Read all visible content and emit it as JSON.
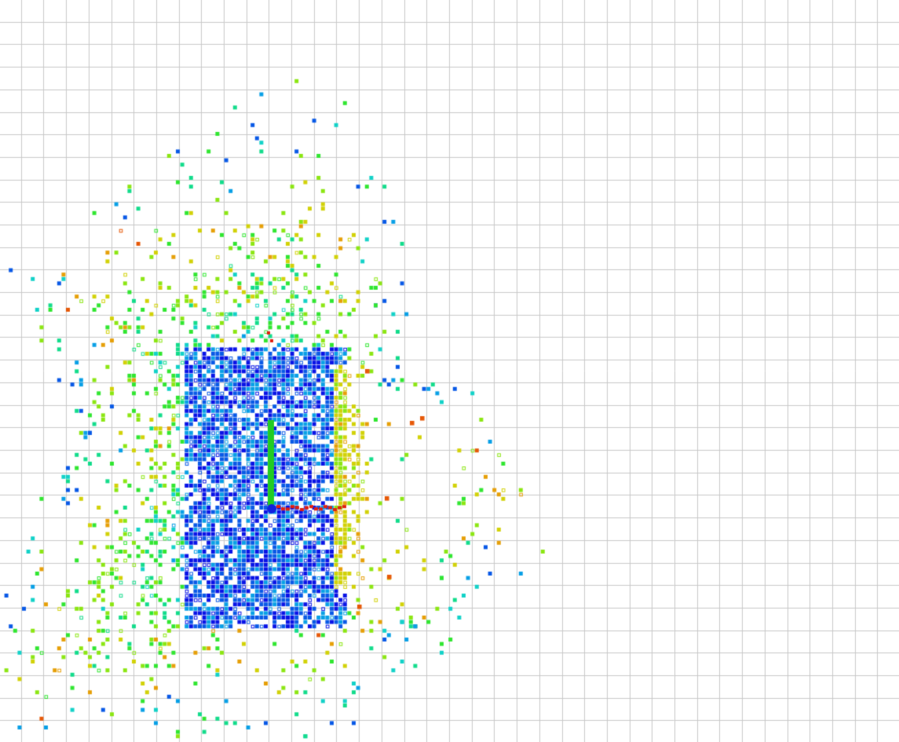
{
  "view": {
    "background": "#ffffff",
    "grid_color": "#c8c8c8",
    "grid_spacing_m": 1.0
  },
  "cloud": {
    "description_colormap": [
      "#0a14e6",
      "#0a5ae6",
      "#0aa0e6",
      "#14d2c8",
      "#14dc8c",
      "#32e632",
      "#8ce614",
      "#d2d20a",
      "#e6a00a",
      "#e65a0a",
      "#e61414"
    ],
    "point_density": 0.55
  },
  "robot": {
    "path_color": "#22cc22",
    "marker_color": "#1020e0",
    "trail_color": "#e02010"
  }
}
